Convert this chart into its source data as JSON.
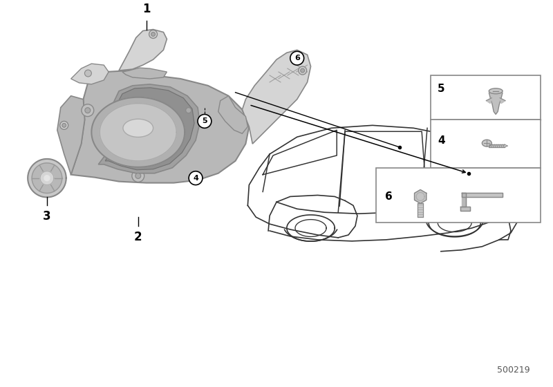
{
  "background_color": "#ffffff",
  "part_number": "500219",
  "housing_color": "#b8b8b8",
  "housing_dark": "#888888",
  "housing_light": "#d5d5d5",
  "speaker_color": "#c0c0c0",
  "line_color": "#333333",
  "fig_width": 8.0,
  "fig_height": 5.6,
  "dpi": 100
}
